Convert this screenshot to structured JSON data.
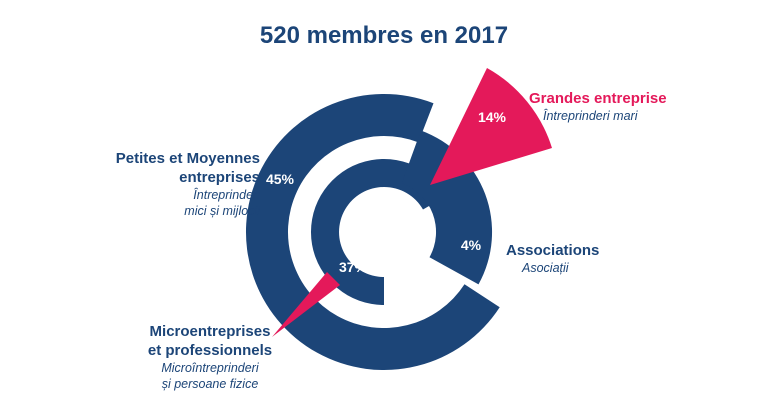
{
  "colors": {
    "navy": "#1c4578",
    "accent": "#e4195a",
    "white": "#ffffff"
  },
  "chart_data": {
    "type": "pie",
    "title": "520 membres en 2017",
    "unit": "%",
    "slices": [
      {
        "label_fr": "Petites et Moyennes entreprises",
        "label_ro": "Întreprinderi mici și mijlocii",
        "value": 45,
        "value_label": "45%",
        "color": "#1c4578"
      },
      {
        "label_fr": "Microentreprises et professionnels",
        "label_ro": "Microîntreprinderi și persoane fizice",
        "value": 37,
        "value_label": "37%",
        "color": "#1c4578"
      },
      {
        "label_fr": "Associations",
        "label_ro": "Asociații",
        "value": 4,
        "value_label": "4%",
        "color": "#1c4578"
      },
      {
        "label_fr": "Grandes entreprise",
        "label_ro": "Întreprinderi mari",
        "value": 14,
        "value_label": "14%",
        "color": "#e4195a"
      }
    ]
  },
  "labels": {
    "pme": {
      "fr_line1": "Petites et Moyennes",
      "fr_line2": "entreprises",
      "ro_line1": "Întreprinderi",
      "ro_line2": "mici și mijlocii"
    },
    "micro": {
      "fr_line1": "Microentreprises",
      "fr_line2": "et professionnels",
      "ro_line1": "Microîntreprinderi",
      "ro_line2": "și persoane fizice"
    },
    "assoc": {
      "fr_line1": "Associations",
      "ro_line1": "Asociații"
    },
    "grandes": {
      "fr_line1": "Grandes entreprise",
      "ro_line1": "Întreprinderi mari"
    }
  }
}
